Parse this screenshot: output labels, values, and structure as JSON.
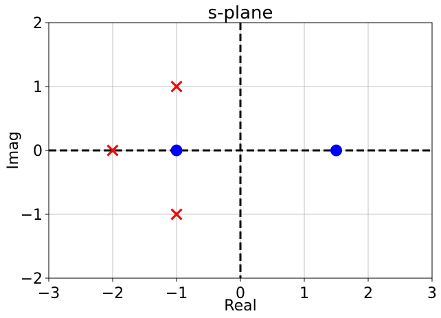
{
  "chart_data": {
    "type": "scatter",
    "title": "s-plane",
    "xlabel": "Real",
    "ylabel": "Imag",
    "xlim": [
      -3,
      3
    ],
    "ylim": [
      -2,
      2
    ],
    "xticks": [
      -3,
      -2,
      -1,
      0,
      1,
      2,
      3
    ],
    "yticks": [
      -2,
      -1,
      0,
      1,
      2
    ],
    "xtick_labels": [
      "−3",
      "−2",
      "−1",
      "0",
      "1",
      "2",
      "3"
    ],
    "ytick_labels": [
      "−2",
      "−1",
      "0",
      "1",
      "2"
    ],
    "grid": true,
    "reference_lines": [
      {
        "orientation": "horizontal",
        "value": 0,
        "style": "dashed",
        "color": "#000000"
      },
      {
        "orientation": "vertical",
        "value": 0,
        "style": "dashed",
        "color": "#000000"
      }
    ],
    "series": [
      {
        "marker": "x",
        "color": "#ff0000",
        "points": [
          [
            -2,
            0
          ],
          [
            -1,
            1
          ],
          [
            -1,
            -1
          ]
        ]
      },
      {
        "marker": "o",
        "color": "#0000ff",
        "points": [
          [
            -1,
            0
          ],
          [
            1.5,
            0
          ]
        ]
      }
    ]
  }
}
